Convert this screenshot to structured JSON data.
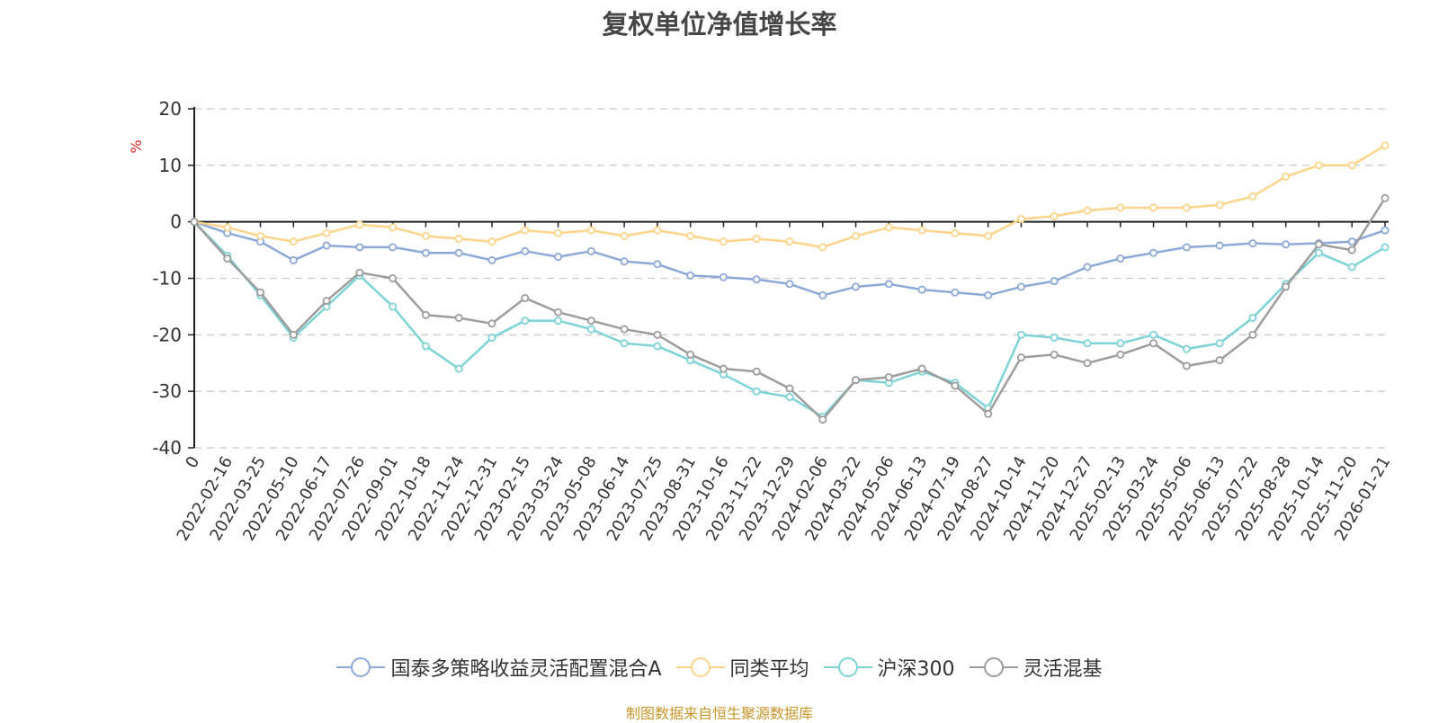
{
  "chart_data": {
    "type": "line",
    "title": "复权单位净值增长率",
    "ylabel": "%",
    "xlabel": "",
    "ylim": [
      -40,
      20
    ],
    "yticks": [
      "20",
      "10",
      "0",
      "-10",
      "-20",
      "-30",
      "-40"
    ],
    "yticks_values": [
      20,
      10,
      0,
      -10,
      -20,
      -30,
      -40
    ],
    "grid": true,
    "legend_position": "bottom-center",
    "categories": [
      "0",
      "2022-02-16",
      "2022-03-25",
      "2022-05-10",
      "2022-06-17",
      "2022-07-26",
      "2022-09-01",
      "2022-10-18",
      "2022-11-24",
      "2022-12-31",
      "2023-02-15",
      "2023-03-24",
      "2023-05-08",
      "2023-06-14",
      "2023-07-25",
      "2023-08-31",
      "2023-10-16",
      "2023-11-22",
      "2023-12-29",
      "2024-02-06",
      "2024-03-22",
      "2024-05-06",
      "2024-06-13",
      "2024-07-19",
      "2024-08-27",
      "2024-10-14",
      "2024-11-20",
      "2024-12-27",
      "2025-02-13",
      "2025-03-24",
      "2025-05-06",
      "2025-06-13",
      "2025-07-22",
      "2025-08-28",
      "2025-10-14",
      "2025-11-20",
      "2026-01-21"
    ],
    "series": [
      {
        "name": "国泰多策略收益灵活配置混合A",
        "color": "#8da9d8",
        "values": [
          0,
          -2.0,
          -3.5,
          -6.8,
          -4.2,
          -4.5,
          -4.5,
          -5.5,
          -5.5,
          -6.8,
          -5.2,
          -6.2,
          -5.2,
          -7.0,
          -7.5,
          -9.5,
          -9.8,
          -10.2,
          -11.0,
          -13.0,
          -11.5,
          -11.0,
          -12.0,
          -12.5,
          -13.0,
          -11.5,
          -10.5,
          -8.0,
          -6.5,
          -5.5,
          -4.5,
          -4.2,
          -3.8,
          -4.0,
          -3.8,
          -3.5,
          -1.5
        ]
      },
      {
        "name": "同类平均",
        "color": "#fcd58a",
        "values": [
          0,
          -1.0,
          -2.5,
          -3.5,
          -2.0,
          -0.5,
          -1.0,
          -2.5,
          -3.0,
          -3.5,
          -1.5,
          -2.0,
          -1.5,
          -2.5,
          -1.5,
          -2.5,
          -3.5,
          -3.0,
          -3.5,
          -4.5,
          -2.5,
          -1.0,
          -1.5,
          -2.0,
          -2.5,
          0.5,
          1.0,
          2.0,
          2.5,
          2.5,
          2.5,
          3.0,
          4.5,
          8.0,
          10.0,
          10.0,
          13.5
        ]
      },
      {
        "name": "沪深300",
        "color": "#7dd3d6",
        "values": [
          0,
          -6.0,
          -13.0,
          -20.5,
          -15.0,
          -9.5,
          -15.0,
          -22.0,
          -26.0,
          -20.5,
          -17.5,
          -17.5,
          -19.0,
          -21.5,
          -22.0,
          -24.5,
          -27.0,
          -30.0,
          -31.0,
          -34.5,
          -28.0,
          -28.5,
          -26.5,
          -28.5,
          -33.0,
          -20.0,
          -20.5,
          -21.5,
          -21.5,
          -20.0,
          -22.5,
          -21.5,
          -17.0,
          -11.0,
          -5.5,
          -8.0,
          -4.5
        ]
      },
      {
        "name": "灵活混基",
        "color": "#9d9d9d",
        "values": [
          0,
          -6.5,
          -12.5,
          -20.0,
          -14.0,
          -9.0,
          -10.0,
          -16.5,
          -17.0,
          -18.0,
          -13.5,
          -16.0,
          -17.5,
          -19.0,
          -20.0,
          -23.5,
          -26.0,
          -26.5,
          -29.5,
          -35.0,
          -28.0,
          -27.5,
          -26.0,
          -29.0,
          -34.0,
          -24.0,
          -23.5,
          -25.0,
          -23.5,
          -21.5,
          -25.5,
          -24.5,
          -20.0,
          -11.5,
          -4.0,
          -5.0,
          4.2
        ]
      }
    ]
  },
  "source": "制图数据来自恒生聚源数据库"
}
